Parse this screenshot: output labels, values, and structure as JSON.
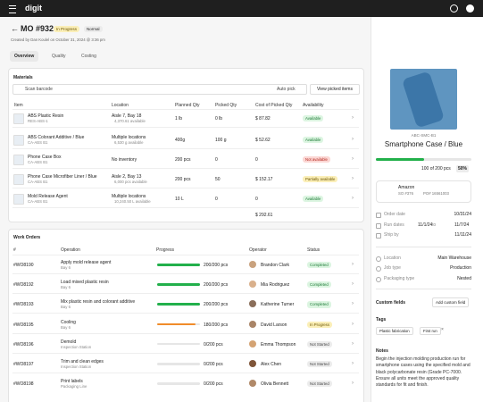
{
  "app": {
    "logo": "digit"
  },
  "header": {
    "title": "MO #932",
    "status": "In Progress",
    "priority": "Normal",
    "created": "Created by Dan Koulel on October 31, 2024 @ 3:36 pm",
    "tabs": [
      "Overview",
      "Quality",
      "Costing"
    ]
  },
  "materials": {
    "title": "Materials",
    "search": "Scan barcode",
    "auto_pick": "Auto pick",
    "view_button": "View picked items",
    "columns": [
      "Item",
      "Location",
      "Planned Qty",
      "Picked Qty",
      "Cost of Picked Qty",
      "Availability"
    ],
    "rows": [
      {
        "name": "ABS Plastic Resin",
        "sku": "RES-ABS-1",
        "location": "Aisle 7, Bay 18",
        "available": "4,370.61 available",
        "planned": "1 lb",
        "picked": "0 lb",
        "cost": "$ 87.82",
        "availability": "Available"
      },
      {
        "name": "ABS Colorant Additive / Blue",
        "sku": "CA-ABS B1",
        "location": "Multiple locations",
        "available": "6,530 g available",
        "planned": "400g",
        "picked": "100 g",
        "cost": "$ 52.62",
        "availability": "Available"
      },
      {
        "name": "Phone Case Box",
        "sku": "CA-ABS B1",
        "location": "No inventory",
        "available": null,
        "planned": "200 pcs",
        "picked": "0",
        "cost": "0",
        "availability": "Not available"
      },
      {
        "name": "Phone Case Microfiber Liner / Blue",
        "sku": "CA-ABS B1",
        "location": "Aisle 2, Bay 13",
        "available": "6,000 pcs available",
        "planned": "200 pcs",
        "picked": "50",
        "cost": "$ 152.17",
        "availability": "Partially available"
      },
      {
        "name": "Mold Release Agent",
        "sku": "CA-ABS B1",
        "location": "Multiple locations",
        "available": "10,240.50 L available",
        "planned": "10 L",
        "picked": "0",
        "cost": "0",
        "availability": "Available"
      }
    ],
    "total": "$ 292.61"
  },
  "work_orders": {
    "title": "Work Orders",
    "columns": [
      "#",
      "Operation",
      "Progress",
      "Operator",
      "Status"
    ],
    "rows": [
      {
        "id": "#WO8190",
        "operation": "Apply mold release agent",
        "station": "Bay 6",
        "progress": 200,
        "target": 200,
        "progress_label": "200/200 pcs",
        "operator": "Brandon Clark",
        "status": "Completed"
      },
      {
        "id": "#WO8192",
        "operation": "Load mixed plastic resin",
        "station": "Bay 6",
        "progress": 200,
        "target": 200,
        "progress_label": "200/200 pcs",
        "operator": "Mia Rodriguez",
        "status": "Completed"
      },
      {
        "id": "#WO8193",
        "operation": "Mix plastic resin and colorant additive",
        "station": "Bay 6",
        "progress": 200,
        "target": 200,
        "progress_label": "200/200 pcs",
        "operator": "Katherine Turner",
        "status": "Completed"
      },
      {
        "id": "#WO8195",
        "operation": "Cooling",
        "station": "Bay 6",
        "progress": 180,
        "target": 200,
        "progress_label": "180/200 pcs",
        "operator": "David Larson",
        "status": "In Progress"
      },
      {
        "id": "#WO8196",
        "operation": "Demold",
        "station": "Inspection Station",
        "progress": 0,
        "target": 200,
        "progress_label": "0/200 pcs",
        "operator": "Emma Thompson",
        "status": "Not Started"
      },
      {
        "id": "#WO8197",
        "operation": "Trim and clean edges",
        "station": "Inspection Station",
        "progress": 0,
        "target": 200,
        "progress_label": "0/200 pcs",
        "operator": "Alex Chen",
        "status": "Not Started"
      },
      {
        "id": "#WO8198",
        "operation": "Print labels",
        "station": "Packaging Line",
        "progress": 0,
        "target": 200,
        "progress_label": "0/200 pcs",
        "operator": "Olivia Bennett",
        "status": "Not Started"
      }
    ]
  },
  "product": {
    "sku": "ABC-SMC-B1",
    "name": "Smartphone Case / Blue",
    "produced": 100,
    "planned": 200,
    "progress_label": "100 of 200 pcs",
    "percent": {
      "value": 50,
      "label": "50%"
    },
    "customer": {
      "name": "Amazon",
      "so": "SO #376",
      "po": "PO# 16561003"
    },
    "dates": [
      {
        "label": "Order date",
        "value": "10/31/24"
      },
      {
        "label": "Run dates",
        "value": "11/1/24",
        "to": "to",
        "end": "11/7/24"
      },
      {
        "label": "Ship by",
        "value": "11/11/24"
      }
    ],
    "details": [
      {
        "label": "Location",
        "value": "Main Warehouse"
      },
      {
        "label": "Job type",
        "value": "Production"
      },
      {
        "label": "Packaging type",
        "value": "Nested"
      }
    ],
    "custom_fields": "Custom fields",
    "add_custom_field": "Add custom field",
    "tags_title": "Tags",
    "tags": [
      "Plastic fabrication",
      "First run"
    ],
    "notes_title": "Notes",
    "notes": "Begin the injection molding production run for smartphone cases using the specified mold and black polycarbonate resin (Grade PC-7000. Ensure all units meet the approved quality standards for fit and finish."
  }
}
